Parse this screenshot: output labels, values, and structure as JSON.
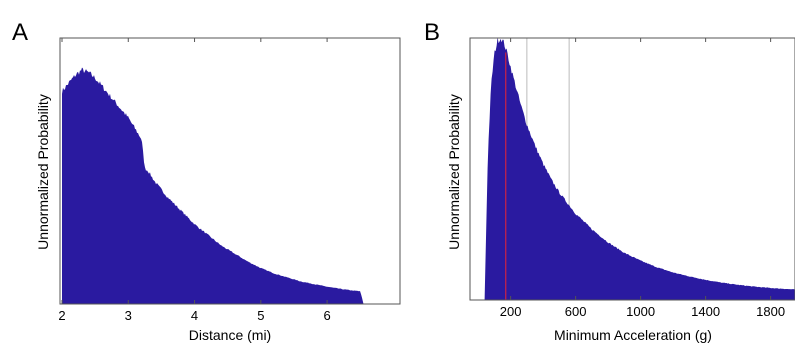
{
  "chart_data": [
    {
      "panel": "A",
      "type": "area",
      "xlabel": "Distance (mi)",
      "ylabel": "Unnormalized Probability",
      "xlim": [
        1.97,
        7.1
      ],
      "ylim": [
        0,
        1
      ],
      "xticks": [
        2,
        3,
        4,
        5,
        6
      ],
      "xtick_labels": [
        "2",
        "3",
        "4",
        "5",
        "6"
      ],
      "fill_color": "#2a1aa0",
      "x": [
        2.0,
        2.1,
        2.2,
        2.3,
        2.4,
        2.5,
        2.6,
        2.7,
        2.8,
        2.9,
        3.0,
        3.1,
        3.2,
        3.25,
        3.3,
        3.4,
        3.5,
        3.6,
        3.7,
        3.8,
        3.9,
        4.0,
        4.2,
        4.4,
        4.6,
        4.8,
        5.0,
        5.2,
        5.4,
        5.6,
        5.8,
        6.0,
        6.2,
        6.4,
        6.5,
        6.55
      ],
      "y": [
        0.8,
        0.83,
        0.86,
        0.88,
        0.87,
        0.85,
        0.82,
        0.79,
        0.76,
        0.73,
        0.7,
        0.66,
        0.62,
        0.51,
        0.5,
        0.46,
        0.43,
        0.4,
        0.375,
        0.35,
        0.325,
        0.3,
        0.26,
        0.22,
        0.19,
        0.16,
        0.135,
        0.115,
        0.1,
        0.085,
        0.075,
        0.065,
        0.057,
        0.05,
        0.048,
        0.0
      ]
    },
    {
      "panel": "B",
      "type": "area",
      "xlabel": "Minimum Acceleration (g)",
      "ylabel": "Unnormalized Probability",
      "xlim": [
        -50,
        1950
      ],
      "ylim": [
        0,
        1
      ],
      "xticks": [
        200,
        600,
        1000,
        1400,
        1800
      ],
      "xtick_labels": [
        "200",
        "600",
        "1000",
        "1400",
        "1800"
      ],
      "fill_color": "#2a1aa0",
      "marker_color": "#cc2244",
      "marker_x": 170,
      "reference_lines_x": [
        120,
        300,
        560
      ],
      "x": [
        40,
        60,
        80,
        100,
        120,
        140,
        160,
        180,
        200,
        230,
        260,
        300,
        350,
        400,
        450,
        500,
        600,
        700,
        800,
        900,
        1000,
        1100,
        1200,
        1300,
        1400,
        1500,
        1600,
        1700,
        1800,
        1900,
        1950
      ],
      "y": [
        0.0,
        0.55,
        0.82,
        0.94,
        0.99,
        1.0,
        0.98,
        0.94,
        0.89,
        0.82,
        0.75,
        0.67,
        0.59,
        0.52,
        0.46,
        0.41,
        0.33,
        0.27,
        0.22,
        0.18,
        0.15,
        0.125,
        0.105,
        0.09,
        0.077,
        0.066,
        0.058,
        0.051,
        0.046,
        0.042,
        0.04
      ]
    }
  ],
  "panels": {
    "a": {
      "letter": "A"
    },
    "b": {
      "letter": "B"
    }
  }
}
